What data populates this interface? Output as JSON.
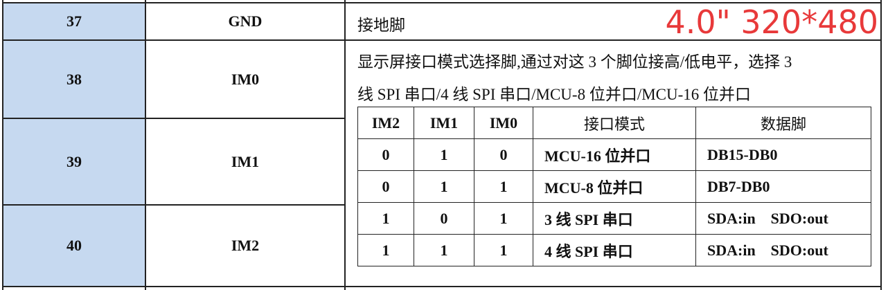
{
  "rows": [
    {
      "pin": "37",
      "name": "GND",
      "desc": "接地脚"
    },
    {
      "pin": "38",
      "name": "IM0"
    },
    {
      "pin": "39",
      "name": "IM1"
    },
    {
      "pin": "40",
      "name": "IM2"
    }
  ],
  "desc_im_line1": "显示屏接口模式选择脚,通过对这 3 个脚位接高/低电平，选择 3",
  "desc_im_line2": "线 SPI 串口/4 线 SPI 串口/MCU-8 位并口/MCU-16 位并口",
  "overlay": "4.0\" 320*480",
  "colors": {
    "pin_bg": "#c6d9f0",
    "overlay": "#e8393a"
  },
  "inner": {
    "headers": [
      "IM2",
      "IM1",
      "IM0",
      "接口模式",
      "数据脚"
    ],
    "rows": [
      [
        "0",
        "1",
        "0",
        "MCU-16 位并口",
        "DB15-DB0"
      ],
      [
        "0",
        "1",
        "1",
        "MCU-8 位并口",
        "DB7-DB0"
      ],
      [
        "1",
        "0",
        "1",
        "3 线 SPI 串口",
        "SDA:in    SDO:out"
      ],
      [
        "1",
        "1",
        "1",
        "4 线 SPI 串口",
        "SDA:in    SDO:out"
      ]
    ]
  }
}
